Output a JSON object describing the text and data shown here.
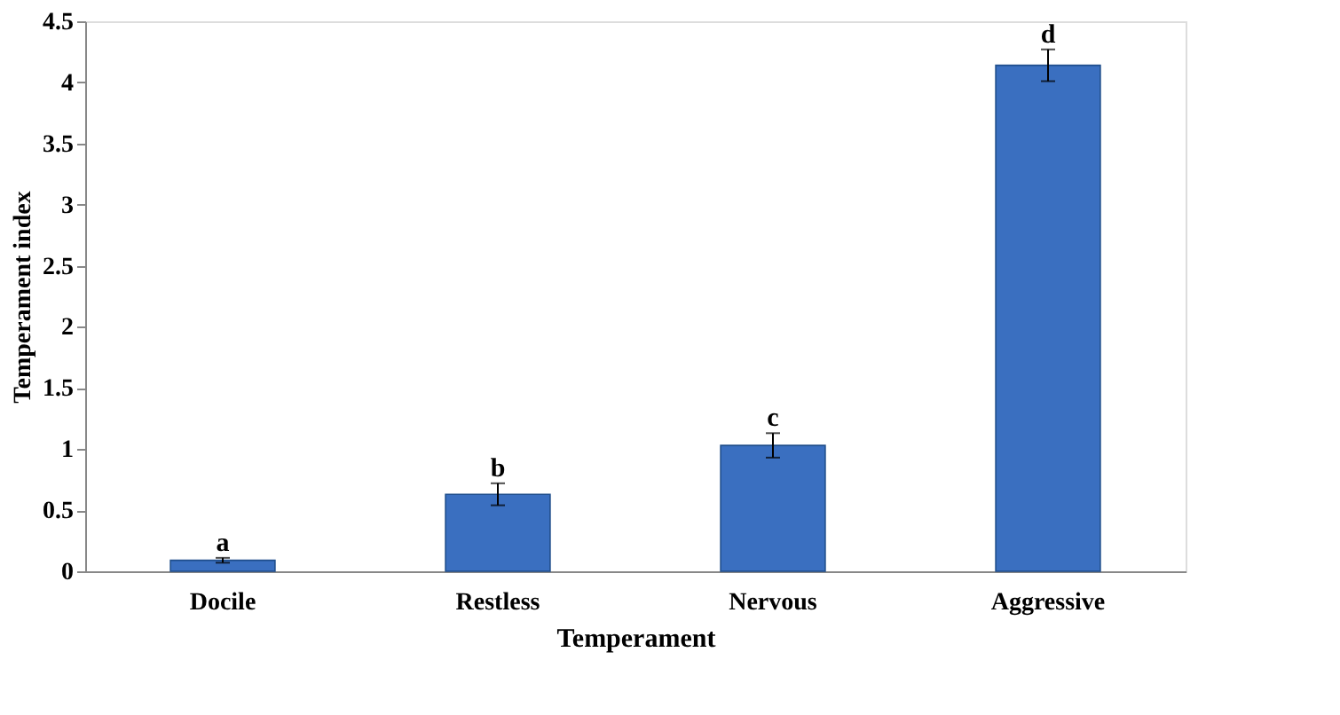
{
  "chart_data": {
    "type": "bar",
    "xlabel": "Temperament",
    "ylabel": "Temperament index",
    "categories": [
      "Docile",
      "Restless",
      "Nervous",
      "Aggressive"
    ],
    "values": [
      0.09,
      0.63,
      1.03,
      4.14
    ],
    "errors": [
      0.02,
      0.09,
      0.1,
      0.13
    ],
    "color": "#3a6fc0",
    "ylim": [
      0,
      4.5
    ],
    "yticks": [
      0,
      0.5,
      1,
      1.5,
      2,
      2.5,
      3,
      3.5,
      4,
      4.5
    ],
    "grid": false,
    "annotations": [
      {
        "text": "a",
        "x": "Docile",
        "y": 0.11
      },
      {
        "text": "b",
        "x": "Restless",
        "y": 0.72
      },
      {
        "text": "c",
        "x": "Nervous",
        "y": 1.13
      },
      {
        "text": "d",
        "x": "Aggressive",
        "y": 4.27
      }
    ]
  }
}
